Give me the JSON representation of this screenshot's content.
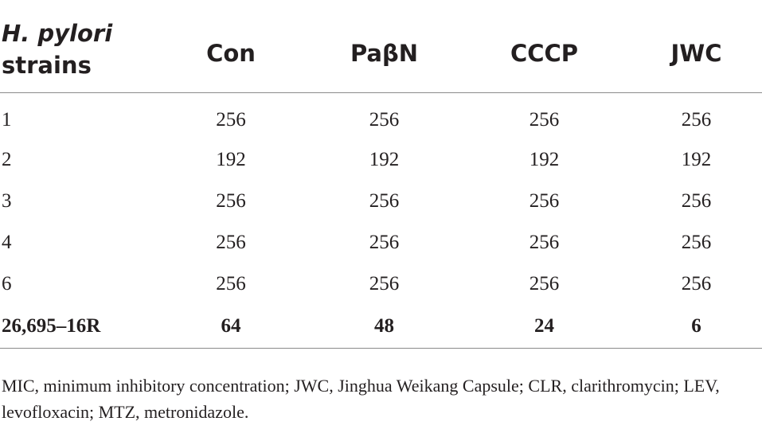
{
  "table": {
    "header": {
      "strain_line1": "H. pylori",
      "strain_line2": "strains",
      "columns": [
        "Con",
        "PaβN",
        "CCCP",
        "JWC"
      ]
    },
    "rows": [
      {
        "strain": "1",
        "values": [
          "256",
          "256",
          "256",
          "256"
        ]
      },
      {
        "strain": "2",
        "values": [
          "192",
          "192",
          "192",
          "192"
        ]
      },
      {
        "strain": "3",
        "values": [
          "256",
          "256",
          "256",
          "256"
        ]
      },
      {
        "strain": "4",
        "values": [
          "256",
          "256",
          "256",
          "256"
        ]
      },
      {
        "strain": "6",
        "values": [
          "256",
          "256",
          "256",
          "256"
        ]
      },
      {
        "strain": "26,695–16R",
        "values": [
          "64",
          "48",
          "24",
          "6"
        ],
        "bold": true
      }
    ],
    "footnote": "MIC, minimum inhibitory concentration; JWC, Jinghua Weikang Capsule; CLR, clarithromycin; LEV, levofloxacin; MTZ, metronidazole."
  }
}
